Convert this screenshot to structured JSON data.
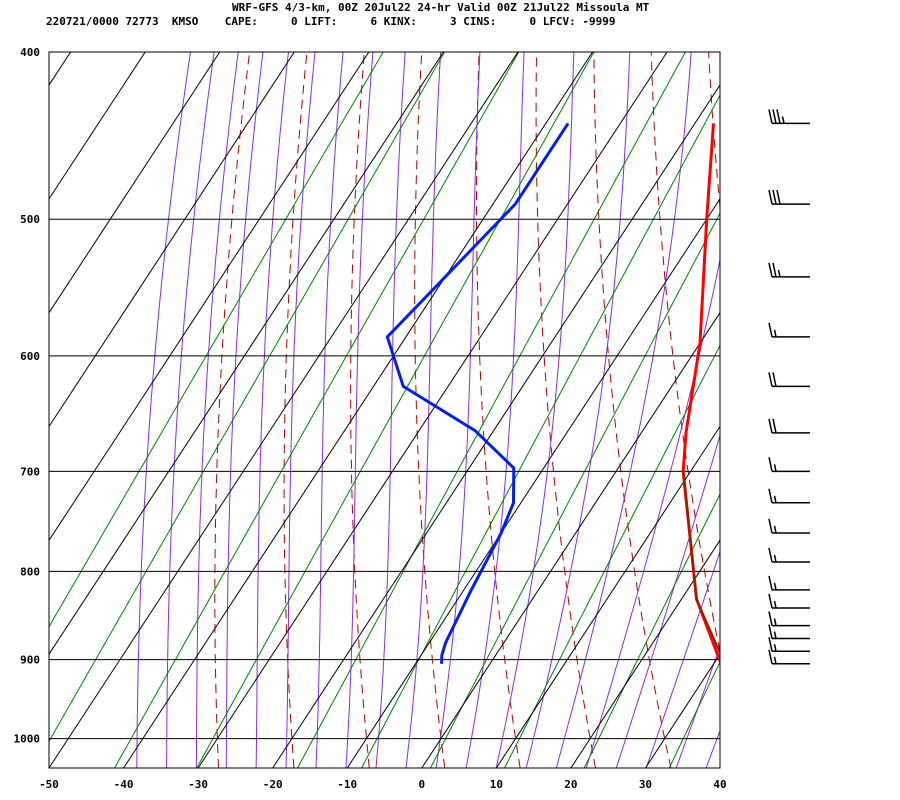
{
  "header": {
    "line1": "WRF-GFS 4/3-km, 00Z 20Jul22 24-hr Valid 00Z 21Jul22 Missoula MT",
    "line2": "220721/0000 72773  KMSO    CAPE:     0 LIFT:     6 KINX:     3 CINS:     0 LFCV: -9999"
  },
  "chart_data": {
    "type": "line",
    "title": "",
    "xlabel": "",
    "ylabel": "",
    "xlim": [
      -50,
      40
    ],
    "ylim": [
      400,
      1040
    ],
    "y_scale": "log-pressure (inverted)",
    "x_ticks": [
      -50,
      -40,
      -30,
      -20,
      -10,
      0,
      10,
      20,
      30,
      40
    ],
    "y_ticks": [
      400,
      500,
      600,
      700,
      800,
      900,
      1000
    ],
    "grid": true,
    "colors": {
      "temperature": "#ff0000",
      "parcel": "#8b2500",
      "dewpoint": "#0022dd",
      "dry_adiabat": "#b00000",
      "moist_adiabat": "#8a2be2",
      "mixing_ratio": "#008000",
      "grid": "#000000"
    },
    "series": [
      {
        "key": "temperature",
        "points": [
          [
            31,
            905
          ],
          [
            22,
            830
          ],
          [
            9,
            700
          ],
          [
            6,
            665
          ],
          [
            0,
            590
          ],
          [
            -10,
            500
          ],
          [
            -17.5,
            440
          ]
        ]
      },
      {
        "key": "parcel",
        "points": [
          [
            31.5,
            905
          ],
          [
            22,
            830
          ],
          [
            9,
            700
          ]
        ]
      },
      {
        "key": "dewpoint",
        "points": [
          [
            -6.5,
            905
          ],
          [
            -7.2,
            895
          ],
          [
            -7.8,
            880
          ],
          [
            -9,
            820
          ],
          [
            -10,
            760
          ],
          [
            -11,
            730
          ],
          [
            -14,
            697
          ],
          [
            -22.5,
            663
          ],
          [
            -36,
            625
          ],
          [
            -42.5,
            585
          ],
          [
            -40,
            540
          ],
          [
            -37,
            490
          ],
          [
            -37,
            440
          ]
        ]
      }
    ],
    "wind_barbs": [
      {
        "p": 440,
        "speed": 35
      },
      {
        "p": 490,
        "speed": 30
      },
      {
        "p": 540,
        "speed": 25
      },
      {
        "p": 585,
        "speed": 15
      },
      {
        "p": 625,
        "speed": 20
      },
      {
        "p": 665,
        "speed": 20
      },
      {
        "p": 700,
        "speed": 15
      },
      {
        "p": 730,
        "speed": 15
      },
      {
        "p": 760,
        "speed": 15
      },
      {
        "p": 790,
        "speed": 15
      },
      {
        "p": 820,
        "speed": 15
      },
      {
        "p": 840,
        "speed": 15
      },
      {
        "p": 860,
        "speed": 15
      },
      {
        "p": 875,
        "speed": 15
      },
      {
        "p": 890,
        "speed": 15
      },
      {
        "p": 905,
        "speed": 15
      }
    ]
  }
}
